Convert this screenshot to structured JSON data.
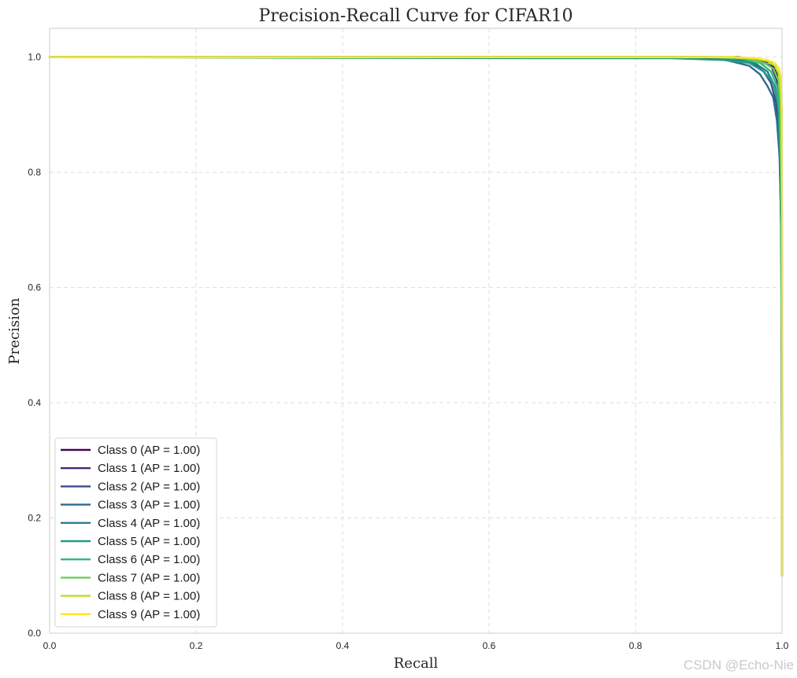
{
  "chart_data": {
    "type": "line",
    "title": "Precision-Recall Curve for CIFAR10",
    "xlabel": "Recall",
    "ylabel": "Precision",
    "xlim": [
      0,
      1
    ],
    "ylim": [
      0,
      1.05
    ],
    "xticks": [
      "0.0",
      "0.2",
      "0.4",
      "0.6",
      "0.8",
      "1.0"
    ],
    "yticks": [
      "0.0",
      "0.2",
      "0.4",
      "0.6",
      "0.8",
      "1.0"
    ],
    "grid": true,
    "legend_position": "lower-left",
    "series": [
      {
        "name": "Class 0 (AP = 1.00)",
        "color": "#440154",
        "points": [
          [
            0,
            1
          ],
          [
            0.9,
            1
          ],
          [
            0.94,
            1
          ],
          [
            0.97,
            0.995
          ],
          [
            0.985,
            0.99
          ],
          [
            0.993,
            0.97
          ],
          [
            0.997,
            0.93
          ],
          [
            0.999,
            0.8
          ],
          [
            1.0,
            0.3
          ],
          [
            1.0,
            0.1
          ]
        ]
      },
      {
        "name": "Class 1 (AP = 1.00)",
        "color": "#482878",
        "points": [
          [
            0,
            1
          ],
          [
            0.9,
            1
          ],
          [
            0.95,
            0.998
          ],
          [
            0.97,
            0.992
          ],
          [
            0.985,
            0.985
          ],
          [
            0.993,
            0.96
          ],
          [
            0.997,
            0.9
          ],
          [
            0.999,
            0.75
          ],
          [
            1.0,
            0.3
          ],
          [
            1.0,
            0.1
          ]
        ]
      },
      {
        "name": "Class 2 (AP = 1.00)",
        "color": "#3e4a89",
        "points": [
          [
            0,
            1
          ],
          [
            0.88,
            1
          ],
          [
            0.93,
            0.997
          ],
          [
            0.96,
            0.99
          ],
          [
            0.975,
            0.975
          ],
          [
            0.985,
            0.955
          ],
          [
            0.992,
            0.92
          ],
          [
            0.996,
            0.86
          ],
          [
            0.999,
            0.7
          ],
          [
            1.0,
            0.1
          ]
        ]
      },
      {
        "name": "Class 3 (AP = 1.00)",
        "color": "#31688e",
        "points": [
          [
            0,
            1
          ],
          [
            0.87,
            1
          ],
          [
            0.92,
            0.996
          ],
          [
            0.955,
            0.985
          ],
          [
            0.97,
            0.97
          ],
          [
            0.98,
            0.95
          ],
          [
            0.988,
            0.93
          ],
          [
            0.993,
            0.89
          ],
          [
            0.997,
            0.82
          ],
          [
            0.999,
            0.68
          ],
          [
            1.0,
            0.1
          ]
        ]
      },
      {
        "name": "Class 4 (AP = 1.00)",
        "color": "#26828e",
        "points": [
          [
            0,
            1
          ],
          [
            0.89,
            1
          ],
          [
            0.94,
            0.996
          ],
          [
            0.965,
            0.988
          ],
          [
            0.98,
            0.975
          ],
          [
            0.99,
            0.95
          ],
          [
            0.995,
            0.91
          ],
          [
            0.998,
            0.8
          ],
          [
            1.0,
            0.4
          ],
          [
            1.0,
            0.1
          ]
        ]
      },
      {
        "name": "Class 5 (AP = 1.00)",
        "color": "#1f9e89",
        "points": [
          [
            0,
            1
          ],
          [
            0.67,
            0.998
          ],
          [
            0.85,
            0.998
          ],
          [
            0.92,
            0.995
          ],
          [
            0.955,
            0.99
          ],
          [
            0.975,
            0.975
          ],
          [
            0.988,
            0.955
          ],
          [
            0.995,
            0.92
          ],
          [
            0.998,
            0.83
          ],
          [
            1.0,
            0.5
          ],
          [
            1.0,
            0.1
          ]
        ]
      },
      {
        "name": "Class 6 (AP = 1.00)",
        "color": "#35b779",
        "points": [
          [
            0,
            1
          ],
          [
            0.9,
            1
          ],
          [
            0.945,
            0.997
          ],
          [
            0.97,
            0.99
          ],
          [
            0.985,
            0.975
          ],
          [
            0.993,
            0.95
          ],
          [
            0.997,
            0.9
          ],
          [
            0.999,
            0.78
          ],
          [
            1.0,
            0.1
          ]
        ]
      },
      {
        "name": "Class 7 (AP = 1.00)",
        "color": "#6ece58",
        "points": [
          [
            0,
            1
          ],
          [
            0.9,
            1
          ],
          [
            0.95,
            0.998
          ],
          [
            0.975,
            0.99
          ],
          [
            0.988,
            0.98
          ],
          [
            0.995,
            0.96
          ],
          [
            0.998,
            0.92
          ],
          [
            1.0,
            0.7
          ],
          [
            1.0,
            0.1
          ]
        ]
      },
      {
        "name": "Class 8 (AP = 1.00)",
        "color": "#b5de2b",
        "points": [
          [
            0,
            1
          ],
          [
            0.92,
            1
          ],
          [
            0.96,
            0.998
          ],
          [
            0.98,
            0.993
          ],
          [
            0.99,
            0.985
          ],
          [
            0.996,
            0.97
          ],
          [
            0.999,
            0.93
          ],
          [
            1.0,
            0.7
          ],
          [
            1.0,
            0.1
          ]
        ]
      },
      {
        "name": "Class 9 (AP = 1.00)",
        "color": "#fde725",
        "points": [
          [
            0,
            1
          ],
          [
            0.93,
            1
          ],
          [
            0.965,
            0.998
          ],
          [
            0.98,
            0.995
          ],
          [
            0.99,
            0.99
          ],
          [
            0.996,
            0.98
          ],
          [
            0.999,
            0.96
          ],
          [
            1.0,
            0.9
          ],
          [
            1.0,
            0.5
          ],
          [
            1.0,
            0.1
          ]
        ]
      }
    ]
  },
  "watermark": "CSDN @Echo-Nie"
}
